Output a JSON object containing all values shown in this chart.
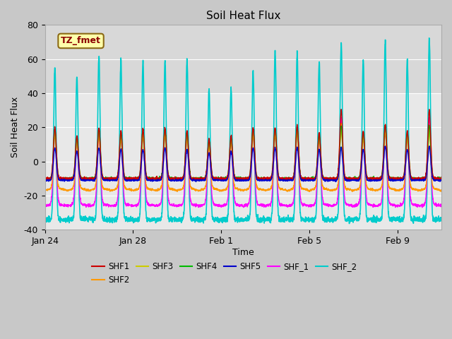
{
  "title": "Soil Heat Flux",
  "xlabel": "Time",
  "ylabel": "Soil Heat Flux",
  "ylim": [
    -40,
    80
  ],
  "xlim": [
    23.0,
    41.0
  ],
  "xtick_labels": [
    "Jan 24",
    "Jan 28",
    "Feb 1",
    "Feb 5",
    "Feb 9"
  ],
  "xtick_positions": [
    23,
    27,
    31,
    35,
    39
  ],
  "ytick_labels": [
    "-40",
    "-20",
    "0",
    "20",
    "40",
    "60",
    "80"
  ],
  "ytick_positions": [
    -40,
    -20,
    0,
    20,
    40,
    60,
    80
  ],
  "annotation_text": "TZ_fmet",
  "series": {
    "SHF1": {
      "color": "#cc0000",
      "lw": 1.0
    },
    "SHF2": {
      "color": "#ff9900",
      "lw": 1.0
    },
    "SHF3": {
      "color": "#cccc00",
      "lw": 1.0
    },
    "SHF4": {
      "color": "#00bb00",
      "lw": 1.0
    },
    "SHF5": {
      "color": "#0000cc",
      "lw": 1.0
    },
    "SHF_1": {
      "color": "#ff00ff",
      "lw": 1.0
    },
    "SHF_2": {
      "color": "#00cccc",
      "lw": 1.2
    }
  },
  "fig_bg_color": "#c8c8c8",
  "plot_bg_color": "#e8e8e8",
  "upper_bg_color": "#d8d8d8",
  "grid_color": "#ffffff"
}
